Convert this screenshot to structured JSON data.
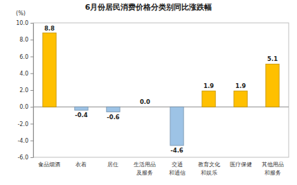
{
  "chart_data": {
    "type": "bar",
    "title": "6月份居民消费价格分类别同比涨跌幅",
    "ylabel": "(%)",
    "categories": [
      "食品烟酒",
      "衣着",
      "居住",
      "生活用品\n及服务",
      "交通\n和通信",
      "教育文化\n和娱乐",
      "医疗保健",
      "其他用品\n和服务"
    ],
    "values": [
      8.8,
      -0.4,
      -0.6,
      0.0,
      -4.6,
      1.9,
      1.9,
      5.1
    ],
    "value_labels": [
      "8.8",
      "-0.4",
      "-0.6",
      "0.0",
      "-4.6",
      "1.9",
      "1.9",
      "5.1"
    ],
    "colors": [
      "#ffc000",
      "#9dc3e6",
      "#9dc3e6",
      "#9dc3e6",
      "#9dc3e6",
      "#ffc000",
      "#ffc000",
      "#ffc000"
    ],
    "ylim": [
      -6,
      10
    ],
    "yticks": [
      {
        "value": -6,
        "label": "-6.0"
      },
      {
        "value": -4,
        "label": "-4.0"
      },
      {
        "value": -2,
        "label": "-2.0"
      },
      {
        "value": 0,
        "label": "0.0"
      },
      {
        "value": 2,
        "label": "2.0"
      },
      {
        "value": 4,
        "label": "4.0"
      },
      {
        "value": 6,
        "label": "6.0"
      },
      {
        "value": 8,
        "label": "8.0"
      },
      {
        "value": 10,
        "label": "10.0"
      }
    ],
    "grid": false,
    "data_labels": true
  }
}
